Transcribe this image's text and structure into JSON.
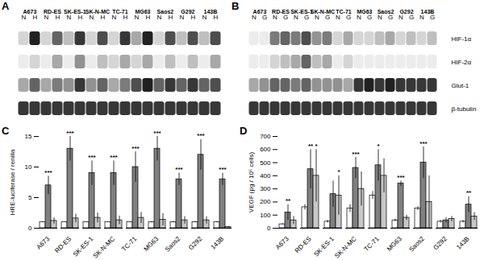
{
  "chart_data": [
    {
      "type": "blot",
      "panel": "A",
      "cell_lines": [
        "A673",
        "RD-ES",
        "SK-ES-1",
        "SK-N-MC",
        "TC-71",
        "MG63",
        "Saos2",
        "G292",
        "143B"
      ],
      "conditions": [
        "N",
        "H"
      ],
      "intensity": [
        [
          0.1,
          0.9,
          0.1,
          0.6,
          0.2,
          0.8,
          0.1,
          0.7,
          0.1,
          0.8,
          0.3,
          0.9,
          0.1,
          0.7,
          0.2,
          0.7,
          0.2,
          0.7
        ],
        [
          0.0,
          0.1,
          0.0,
          0.3,
          0.0,
          0.4,
          0.0,
          0.2,
          0.1,
          0.3,
          0.1,
          0.3,
          0.0,
          0.2,
          0.0,
          0.2,
          0.0,
          0.3
        ],
        [
          0.3,
          0.6,
          0.3,
          0.5,
          0.4,
          0.8,
          0.4,
          0.6,
          0.3,
          0.5,
          0.7,
          0.9,
          0.6,
          0.8,
          0.6,
          0.8,
          0.6,
          0.7
        ],
        [
          0.8,
          0.8,
          0.8,
          0.8,
          0.8,
          0.8,
          0.8,
          0.8,
          0.8,
          0.8,
          0.8,
          0.8,
          0.8,
          0.8,
          0.8,
          0.8,
          0.8,
          0.8
        ]
      ],
      "intensity_range": [
        0,
        1
      ],
      "tick_labels": "x"
    },
    {
      "type": "blot",
      "panel": "B",
      "cell_lines": [
        "A673",
        "RD-ES",
        "SK-ES-1",
        "SK-N-MC",
        "TC-71",
        "MG63",
        "Saos2",
        "G292",
        "143B"
      ],
      "conditions": [
        "N",
        "G"
      ],
      "rows": [
        "HIF-1α",
        "HIF-2α",
        "Glut-1",
        "β-tubulin"
      ],
      "intensity": [
        [
          0.0,
          0.0,
          0.5,
          0.6,
          0.5,
          0.7,
          0.4,
          0.5,
          0.1,
          0.3,
          0.1,
          0.1,
          0.2,
          0.3,
          0.1,
          0.2,
          0.1,
          0.2
        ],
        [
          0.0,
          0.0,
          0.1,
          0.2,
          0.3,
          0.6,
          0.2,
          0.3,
          0.0,
          0.1,
          0.0,
          0.0,
          0.0,
          0.0,
          0.0,
          0.0,
          0.0,
          0.0
        ],
        [
          0.3,
          0.4,
          0.6,
          0.6,
          0.5,
          0.6,
          0.4,
          0.4,
          0.4,
          0.3,
          0.8,
          0.9,
          0.8,
          0.9,
          0.8,
          0.8,
          0.8,
          0.8
        ],
        [
          0.8,
          0.8,
          0.8,
          0.8,
          0.8,
          0.8,
          0.8,
          0.8,
          0.8,
          0.8,
          0.8,
          0.8,
          0.8,
          0.8,
          0.8,
          0.8,
          0.8,
          0.8
        ]
      ],
      "intensity_range": [
        0,
        1
      ],
      "tick_labels": true
    },
    {
      "type": "bar",
      "panel": "C",
      "y_label": "HRE-luciferase / renilla",
      "categories": [
        "A673",
        "RD-ES",
        "SK-ES-1",
        "SK-N-MC",
        "TC-71",
        "MG63",
        "Saos2",
        "G292",
        "143B"
      ],
      "series": [
        {
          "color": "#ffffff",
          "values": [
            1,
            1,
            1,
            1,
            1,
            1,
            1,
            1,
            1
          ],
          "errors": [
            0.05,
            0.05,
            0.05,
            0.05,
            0.05,
            0.1,
            0.1,
            0.1,
            0.1
          ]
        },
        {
          "color": "#808080",
          "values": [
            7,
            13,
            9,
            9,
            10,
            13,
            8,
            12,
            8
          ],
          "errors": [
            1.5,
            2,
            2,
            2,
            2.5,
            2,
            1,
            2.5,
            1
          ],
          "stars": [
            "***",
            "***",
            "***",
            "***",
            "***",
            "***",
            "***",
            "***",
            "***"
          ]
        },
        {
          "color": "#c8c8c8",
          "values": [
            1.2,
            1.6,
            1.7,
            1.3,
            1.7,
            1.4,
            1.3,
            1.3,
            0.2
          ],
          "errors": [
            0.5,
            0.7,
            0.8,
            0.7,
            0.9,
            1,
            0.6,
            0.6,
            0.1
          ]
        }
      ],
      "ylim": [
        0,
        15
      ],
      "yticks": [
        0,
        5,
        10,
        15
      ]
    },
    {
      "type": "bar",
      "panel": "D",
      "y_label": "VEGF (pg / 10⁵ cells)",
      "categories": [
        "A673",
        "RD-ES",
        "SK-ES-1",
        "SK-N-MC",
        "TC-71",
        "MG63",
        "Saos2",
        "G292",
        "143B"
      ],
      "series": [
        {
          "color": "#ffffff",
          "values": [
            30,
            160,
            50,
            150,
            250,
            60,
            150,
            50,
            50
          ],
          "errors": [
            5,
            20,
            10,
            30,
            30,
            10,
            15,
            10,
            10
          ]
        },
        {
          "color": "#808080",
          "values": [
            120,
            450,
            260,
            460,
            480,
            340,
            500,
            60,
            180
          ],
          "errors": [
            60,
            150,
            100,
            80,
            120,
            20,
            120,
            20,
            60
          ],
          "stars": [
            "**",
            "**",
            null,
            "***",
            "*",
            "***",
            "***",
            null,
            "**"
          ]
        },
        {
          "color": "#c8c8c8",
          "values": [
            60,
            400,
            250,
            300,
            400,
            80,
            200,
            70,
            90
          ],
          "errors": [
            30,
            200,
            150,
            130,
            130,
            20,
            200,
            20,
            30
          ],
          "stars": [
            null,
            "*",
            "*",
            null,
            null,
            null,
            null,
            null,
            null
          ]
        }
      ],
      "ylim": [
        0,
        700
      ],
      "yticks": [
        0,
        100,
        200,
        300,
        400,
        500,
        600,
        700
      ]
    }
  ]
}
